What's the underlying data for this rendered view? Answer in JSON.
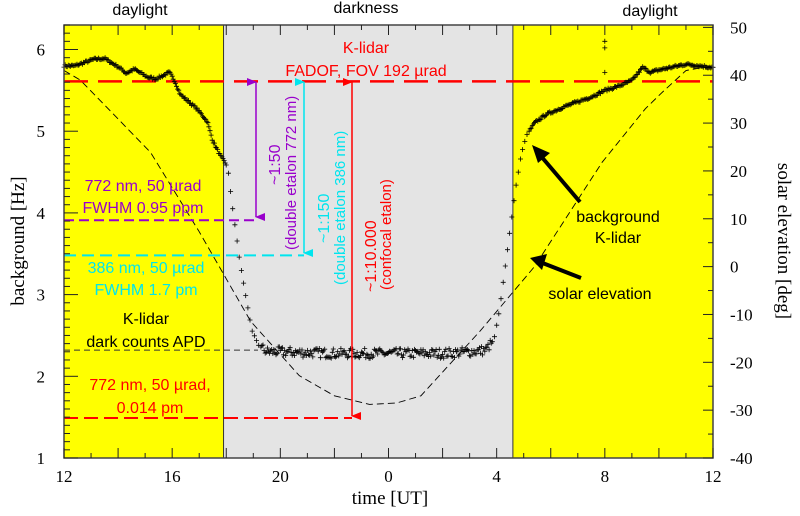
{
  "chart_data": {
    "type": "scatter",
    "xlabel": "time [UT]",
    "ylabel": "background [Hz]",
    "ylabel_right": "solar elevation [deg]",
    "xlim": [
      12,
      36
    ],
    "ylim": [
      1,
      6.3
    ],
    "ylim_right": [
      -40,
      50.5
    ],
    "x_ticks": [
      12,
      16,
      20,
      24,
      28,
      32,
      36
    ],
    "x_tick_labels": [
      "12",
      "16",
      "20",
      "0",
      "4",
      "8",
      "12"
    ],
    "y_ticks": [
      1,
      2,
      3,
      4,
      5,
      6
    ],
    "y_tick_labels": [
      "1",
      "2",
      "3",
      "4",
      "5",
      "6"
    ],
    "y_right_ticks": [
      -40,
      -30,
      -20,
      -10,
      0,
      10,
      20,
      30,
      40,
      50
    ],
    "y_right_tick_labels": [
      "-40",
      "-30",
      "-20",
      "-10",
      "0",
      "10",
      "20",
      "30",
      "40",
      "50"
    ],
    "regions": [
      {
        "label": "daylight",
        "from": 12,
        "to": 17.9,
        "color": "#ffff00"
      },
      {
        "label": "darkness",
        "from": 17.9,
        "to": 28.6,
        "color": "#e4e4e4"
      },
      {
        "label": "daylight",
        "from": 28.6,
        "to": 36,
        "color": "#ffff00"
      }
    ],
    "series": [
      {
        "name": "background K-lidar",
        "axis": "left",
        "marker": "+",
        "color": "#000000",
        "x": [
          12,
          12.4,
          13.1,
          13.5,
          14.0,
          14.3,
          14.6,
          15.1,
          15.4,
          15.9,
          16.1,
          16.3,
          16.9,
          17.3,
          17.5,
          17.8,
          18.05,
          18.2,
          18.5,
          18.75,
          18.95,
          19.2,
          19.5,
          20,
          22,
          24,
          26,
          27,
          27.6,
          27.9,
          28.1,
          28.3,
          28.5,
          28.7,
          28.9,
          29.1,
          29.4,
          29.8,
          30.5,
          31.5,
          32,
          32.5,
          33,
          33.4,
          33.7,
          34,
          35,
          36
        ],
        "y": [
          5.8,
          5.8,
          5.88,
          5.89,
          5.79,
          5.71,
          5.76,
          5.66,
          5.64,
          5.72,
          5.61,
          5.45,
          5.28,
          5.12,
          4.88,
          4.69,
          4.57,
          4.15,
          3.41,
          2.93,
          2.56,
          2.38,
          2.3,
          2.3,
          2.28,
          2.28,
          2.28,
          2.3,
          2.32,
          2.45,
          2.8,
          3.3,
          3.8,
          4.3,
          4.7,
          4.95,
          5.1,
          5.2,
          5.3,
          5.42,
          5.5,
          5.55,
          5.62,
          5.78,
          5.72,
          5.75,
          5.82,
          5.78
        ],
        "outliers": {
          "x": [
            32.0,
            32.0,
            32.0
          ],
          "y": [
            6.1,
            6.02,
            5.72
          ]
        }
      },
      {
        "name": "solar elevation",
        "axis": "right",
        "style": "dashed",
        "color": "#000000",
        "x": [
          12,
          12.6,
          15.2,
          17.0,
          18.9,
          20.7,
          22.0,
          23.3,
          24.3,
          25.2,
          27.4,
          29.4,
          31.9,
          33.5,
          34.1,
          35,
          36
        ],
        "y": [
          41,
          39,
          23.9,
          7.3,
          -11.4,
          -22.8,
          -27,
          -28.8,
          -28.5,
          -27,
          -13.4,
          0,
          21.8,
          33,
          36.3,
          41,
          42
        ]
      }
    ],
    "reference_lines": [
      {
        "label": "K-lidar FADOF, FOV 192 µrad",
        "value": 5.61,
        "color": "#ff0000"
      },
      {
        "label": "772 nm, 50 µrad FWHM 0.95 ppm",
        "value": 3.91,
        "color": "#9900cc"
      },
      {
        "label": "386 nm, 50 µrad FWHM 1.7 pm",
        "value": 3.48,
        "color": "#00e5ee"
      },
      {
        "label": "K-lidar dark counts APD",
        "value": 2.32,
        "color": "#333333"
      },
      {
        "label": "772 nm, 50 µrad, 0.014 pm",
        "value": 1.49,
        "color": "#ff0000"
      }
    ],
    "annotations": {
      "region_top": [
        "daylight",
        "darkness",
        "daylight"
      ],
      "fadof_line1": "K-lidar",
      "fadof_line2": "FADOF, FOV 192 µrad",
      "purple_line1": "772 nm, 50 µrad",
      "purple_line2": "FWHM 0.95 ppm",
      "cyan_line1": "386 nm, 50 µrad",
      "cyan_line2": "FWHM 1.7 pm",
      "dark_line1": "K-lidar",
      "dark_line2": "dark counts APD",
      "red_line1": "772 nm, 50 µrad,",
      "red_line2": "0.014 pm",
      "ratio_purple": "~1:50",
      "ratio_purple_sub": "(double etalon 772 nm)",
      "ratio_cyan": "~1:150",
      "ratio_cyan_sub": "(double etalon 386 nm)",
      "ratio_red": "~1:10.000",
      "ratio_red_sub": "(confocal etalon)",
      "bg_label1": "background",
      "bg_label2": "K-lidar",
      "solar_label": "solar elevation"
    }
  }
}
